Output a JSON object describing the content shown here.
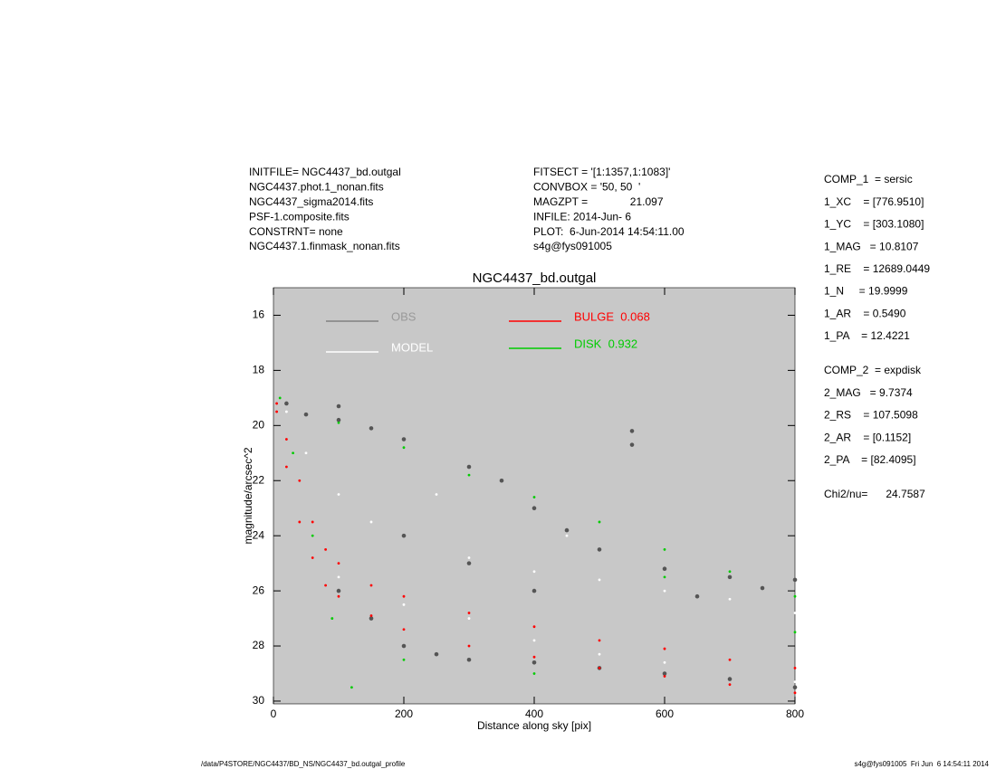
{
  "chart_data": {
    "type": "scatter",
    "title": "NGC4437_bd.outgal",
    "x_label": "Distance along sky [pix]",
    "y_label": "magnitude/arcsec^2",
    "xlim": [
      0,
      800
    ],
    "xticks": [
      0,
      200,
      400,
      600,
      800
    ],
    "ylim": [
      30.1,
      15
    ],
    "yticks": [
      16,
      18,
      20,
      22,
      24,
      26,
      28,
      30
    ],
    "background": "#c8c8c8",
    "series": [
      {
        "name": "OBS",
        "color": "#555555",
        "x": [
          20,
          50,
          100,
          150,
          200,
          300,
          350,
          400,
          450,
          500,
          600,
          700,
          800,
          100,
          150,
          200,
          250,
          300,
          400,
          500,
          600,
          700,
          800,
          200,
          300,
          400,
          550,
          550,
          100,
          650,
          750
        ],
        "values": [
          19.2,
          19.6,
          19.8,
          20.1,
          20.5,
          21.5,
          22,
          23,
          23.8,
          24.5,
          25.2,
          25.5,
          25.6,
          26,
          27,
          28,
          28.3,
          28.5,
          28.6,
          28.8,
          29,
          29.2,
          29.5,
          24,
          25,
          26,
          20.2,
          20.7,
          19.3,
          26.2,
          25.9
        ]
      },
      {
        "name": "MODEL",
        "color": "#ffffff",
        "x": [
          20,
          50,
          100,
          150,
          200,
          300,
          400,
          500,
          600,
          700,
          800,
          100,
          200,
          300,
          400,
          500,
          600,
          800,
          250,
          450
        ],
        "values": [
          19.5,
          21,
          22.5,
          23.5,
          24,
          24.8,
          25.3,
          25.6,
          26,
          26.3,
          26.8,
          25.5,
          26.5,
          27,
          27.8,
          28.3,
          28.6,
          29.3,
          22.5,
          24
        ]
      },
      {
        "name": "BULGE  0.068",
        "color": "#ff0000",
        "x": [
          5,
          20,
          40,
          60,
          80,
          100,
          150,
          200,
          300,
          400,
          500,
          600,
          700,
          800,
          5,
          20,
          40,
          60,
          80,
          100,
          150,
          200,
          300,
          400,
          500,
          600,
          700,
          800
        ],
        "values": [
          19.2,
          20.5,
          22,
          23.5,
          24.5,
          25,
          25.8,
          26.2,
          26.8,
          27.3,
          27.8,
          28.1,
          28.5,
          28.8,
          19.5,
          21.5,
          23.5,
          24.8,
          25.8,
          26.2,
          26.9,
          27.4,
          28,
          28.4,
          28.8,
          29.1,
          29.4,
          29.7
        ]
      },
      {
        "name": "DISK  0.932",
        "color": "#00cc00",
        "x": [
          10,
          100,
          200,
          300,
          400,
          500,
          600,
          700,
          800,
          30,
          60,
          90,
          120,
          600,
          800,
          200,
          400
        ],
        "values": [
          19,
          19.9,
          20.8,
          21.8,
          22.6,
          23.5,
          24.5,
          25.3,
          26.2,
          21,
          24,
          27,
          29.5,
          25.5,
          27.5,
          28.5,
          29
        ]
      }
    ],
    "info_left": [
      "INITFILE= NGC4437_bd.outgal",
      "NGC4437.phot.1_nonan.fits",
      "NGC4437_sigma2014.fits",
      "PSF-1.composite.fits",
      "CONSTRNT= none",
      "NGC4437.1.finmask_nonan.fits"
    ],
    "info_right": [
      "FITSECT = '[1:1357,1:1083]'",
      "CONVBOX = '50, 50  '",
      "MAGZPT =              21.097",
      "INFILE: 2014-Jun- 6",
      "PLOT:  6-Jun-2014 14:54:11.00",
      "s4g@fys091005"
    ],
    "params_1": [
      "COMP_1  = sersic",
      "1_XC    = [776.9510]",
      "1_YC    = [303.1080]",
      "1_MAG   = 10.8107",
      "1_RE    = 12689.0449",
      "1_N     = 19.9999",
      "1_AR    = 0.5490",
      "1_PA    = 12.4221"
    ],
    "params_2": [
      "COMP_2  = expdisk",
      "2_MAG   = 9.7374",
      "2_RS    = 107.5098",
      "2_AR    = [0.1152]",
      "2_PA    = [82.4095]"
    ],
    "chi2": "Chi2/nu=      24.7587",
    "footer_left": "/data/P4STORE/NGC4437/BD_NS/NGC4437_bd.outgal_profile",
    "footer_right": "s4g@fys091005  Fri Jun  6 14:54:11 2014"
  }
}
